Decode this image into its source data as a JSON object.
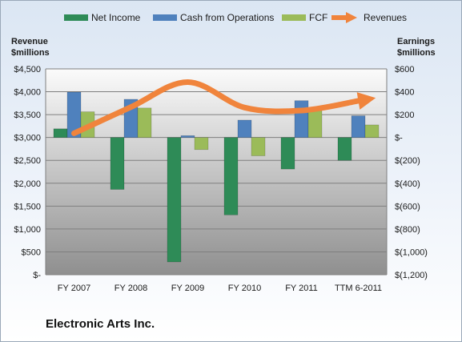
{
  "chart_data": {
    "type": "bar",
    "title": "Electronic Arts Inc.",
    "categories": [
      "FY 2007",
      "FY 2008",
      "FY 2009",
      "FY 2010",
      "FY 2011",
      "TTM 6-2011"
    ],
    "left_axis": {
      "title_line1": "Revenue",
      "title_line2": "$millions",
      "ticks": [
        "$4,500",
        "$4,000",
        "$3,500",
        "$3,000",
        "$2,500",
        "$2,000",
        "$1,500",
        "$1,000",
        "$500",
        "$-"
      ],
      "ylim": [
        0,
        4500
      ]
    },
    "right_axis": {
      "title_line1": "Earnings",
      "title_line2": "$millions",
      "ticks": [
        "$600",
        "$400",
        "$200",
        "$-",
        "$(200)",
        "$(400)",
        "$(600)",
        "$(800)",
        "$(1,000)",
        "$(1,200)"
      ],
      "ylim": [
        -1200,
        600
      ]
    },
    "series": [
      {
        "name": "Net Income",
        "type": "bar",
        "axis": "right",
        "color": "#2e8b57",
        "values": [
          76,
          -454,
          -1088,
          -677,
          -276,
          -200
        ]
      },
      {
        "name": "Cash from Operations",
        "type": "bar",
        "axis": "right",
        "color": "#4f81bd",
        "values": [
          397,
          334,
          16,
          152,
          322,
          190
        ]
      },
      {
        "name": "FCF",
        "type": "bar",
        "axis": "right",
        "color": "#9bbb59",
        "values": [
          225,
          258,
          -106,
          -160,
          254,
          110
        ]
      },
      {
        "name": "Revenues",
        "type": "line",
        "axis": "left",
        "color": "#f0843c",
        "values": [
          3091,
          3665,
          4212,
          3654,
          3589,
          3800
        ]
      }
    ],
    "grid": true,
    "legend": "top"
  }
}
